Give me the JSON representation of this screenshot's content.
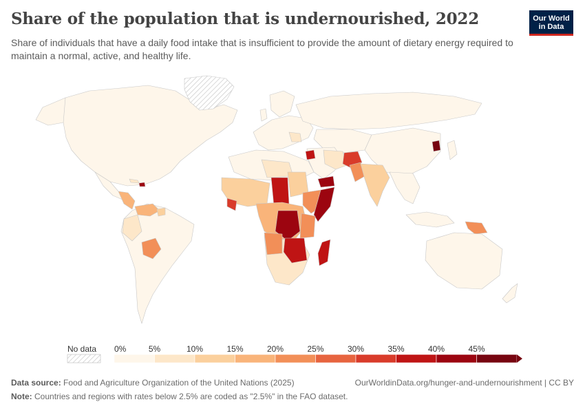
{
  "title": "Share of the population that is undernourished, 2022",
  "subtitle": "Share of individuals that have a daily food intake that is insufficient to provide the amount of dietary energy required to maintain a normal, active, and healthy life.",
  "logo": {
    "line1": "Our World",
    "line2": "in Data"
  },
  "legend": {
    "no_data_label": "No data",
    "ticks": [
      "0%",
      "5%",
      "10%",
      "15%",
      "20%",
      "25%",
      "30%",
      "35%",
      "40%",
      "45%"
    ],
    "bin_colors": [
      "#fef6ea",
      "#fde7c9",
      "#fbd09d",
      "#f9b47a",
      "#f28f58",
      "#e7643f",
      "#d93b2a",
      "#bf1414",
      "#9c0510",
      "#770510"
    ]
  },
  "map_data": {
    "type": "choropleth",
    "metric": "Share of the population that is undernourished",
    "year": "2022",
    "unit": "%",
    "colors": {
      "no_data": "#e6e6e6",
      "border": "#c8c8c8",
      "ocean": "#ffffff"
    }
  },
  "footer": {
    "source_label": "Data source:",
    "source_text": "Food and Agriculture Organization of the United Nations (2025)",
    "url": "OurWorldinData.org/hunger-and-undernourishment | CC BY",
    "note_label": "Note:",
    "note_text": "Countries and regions with rates below 2.5% are coded as \"2.5%\" in the FAO dataset."
  }
}
